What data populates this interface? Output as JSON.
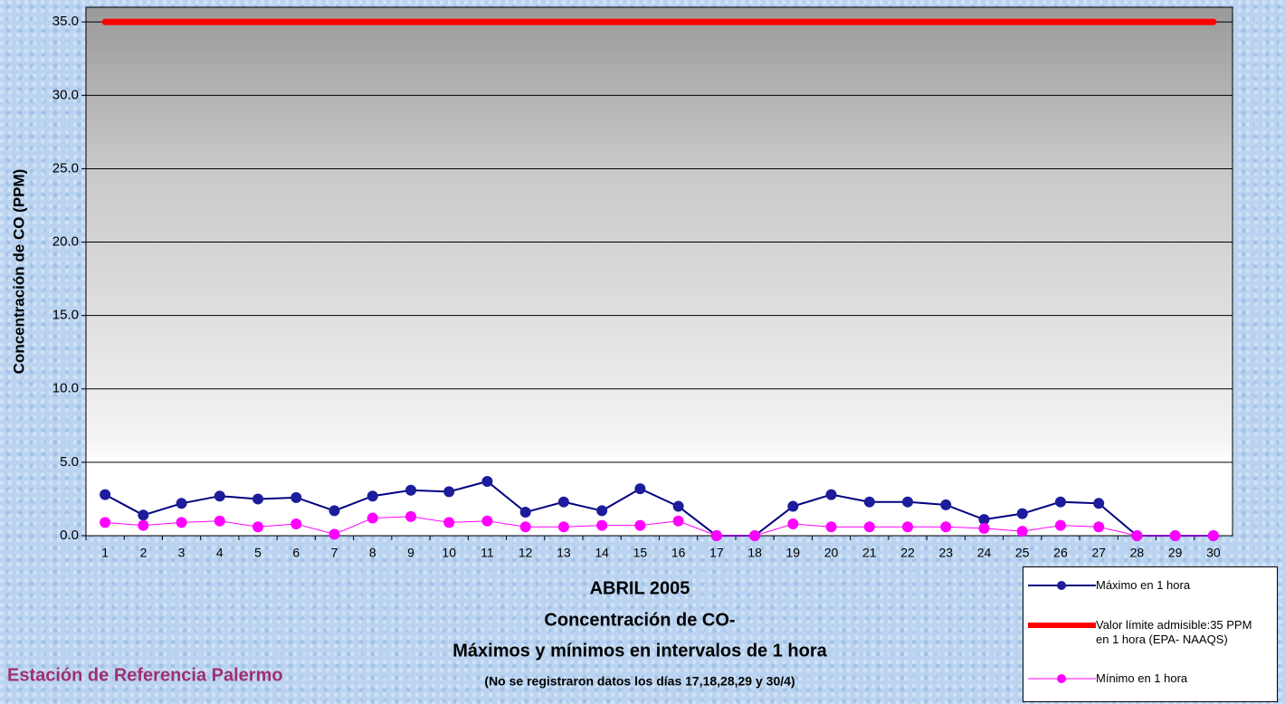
{
  "chart_data": {
    "type": "line",
    "y_label": "Concentración de CO (PPM)",
    "x_label_lines": [
      "ABRIL 2005",
      "Concentración de CO-",
      "Máximos y mínimos en intervalos de 1 hora"
    ],
    "note": "(No se registraron datos los días 17,18,28,29 y 30/4)",
    "station": "Estación de Referencia Palermo",
    "categories": [
      "1",
      "2",
      "3",
      "4",
      "5",
      "6",
      "7",
      "8",
      "9",
      "10",
      "11",
      "12",
      "13",
      "14",
      "15",
      "16",
      "17",
      "18",
      "19",
      "20",
      "21",
      "22",
      "23",
      "24",
      "25",
      "26",
      "27",
      "28",
      "29",
      "30"
    ],
    "series": [
      {
        "name": "Máximo en 1 hora",
        "color": "#000080",
        "marker_color": "#1c1c9c",
        "values": [
          2.8,
          1.4,
          2.2,
          2.7,
          2.5,
          2.6,
          1.7,
          2.7,
          3.1,
          3.0,
          3.7,
          1.6,
          2.3,
          1.7,
          3.2,
          2.0,
          0,
          0,
          2.0,
          2.8,
          2.3,
          2.3,
          2.1,
          1.1,
          1.5,
          2.3,
          2.2,
          0,
          0,
          0
        ]
      },
      {
        "name": "Valor límite admisible:35 PPM en 1 hora (EPA- NAAQS)",
        "color": "#ff0000",
        "values": [
          35,
          35,
          35,
          35,
          35,
          35,
          35,
          35,
          35,
          35,
          35,
          35,
          35,
          35,
          35,
          35,
          35,
          35,
          35,
          35,
          35,
          35,
          35,
          35,
          35,
          35,
          35,
          35,
          35,
          35
        ]
      },
      {
        "name": "Mínimo en 1 hora",
        "color": "#ff00ff",
        "marker_color": "#ff00ff",
        "values": [
          0.9,
          0.7,
          0.9,
          1.0,
          0.6,
          0.8,
          0.1,
          1.2,
          1.3,
          0.9,
          1.0,
          0.6,
          0.6,
          0.7,
          0.7,
          1.0,
          0,
          0,
          0.8,
          0.6,
          0.6,
          0.6,
          0.6,
          0.5,
          0.3,
          0.7,
          0.6,
          0,
          0,
          0
        ]
      }
    ],
    "ylim": [
      0,
      36
    ],
    "yticks": [
      {
        "value": 0,
        "label": "0.0"
      },
      {
        "value": 5,
        "label": "5.0"
      },
      {
        "value": 10,
        "label": "10.0"
      },
      {
        "value": 15,
        "label": "15.0"
      },
      {
        "value": 20,
        "label": "20.0"
      },
      {
        "value": 25,
        "label": "25.0"
      },
      {
        "value": 30,
        "label": "30.0"
      },
      {
        "value": 35,
        "label": "35.0"
      }
    ],
    "grid": true
  }
}
